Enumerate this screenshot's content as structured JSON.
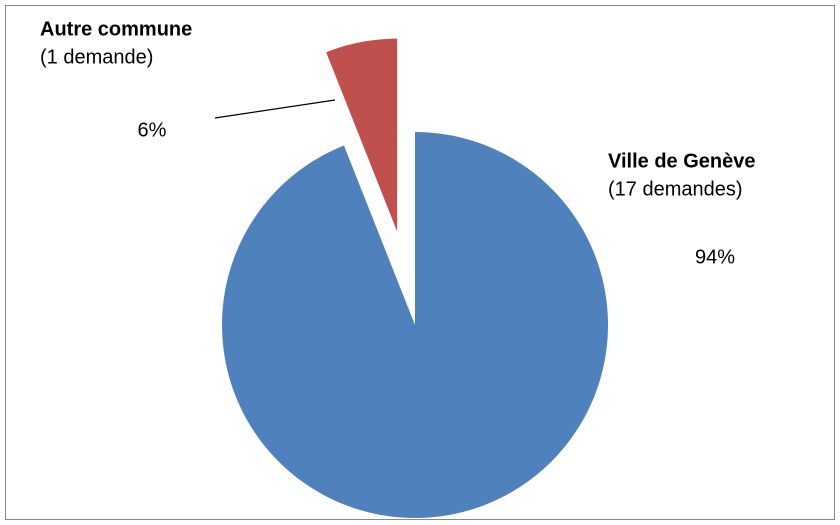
{
  "chart_data": {
    "type": "pie",
    "categories": [
      "Ville de Genève",
      "Autre commune"
    ],
    "sublabels": [
      "(17 demandes)",
      "(1 demande)"
    ],
    "values": [
      94,
      6
    ],
    "value_labels": [
      "94%",
      "6%"
    ],
    "colors": [
      "#4f81bd",
      "#c0504d"
    ],
    "explode": [
      false,
      true
    ]
  }
}
